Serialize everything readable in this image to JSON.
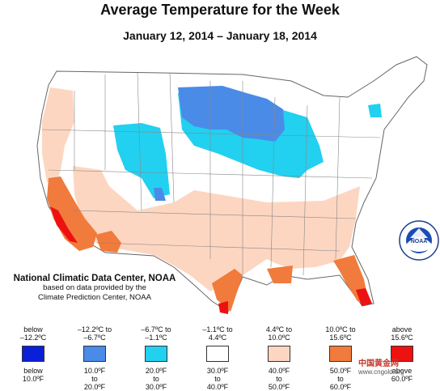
{
  "header": {
    "title": "Average Temperature for the Week",
    "subtitle": "January 12, 2014 – January 18, 2014"
  },
  "credits": {
    "line1": "National Climatic Data Center, NOAA",
    "line2": "based on data provided by the",
    "line3": "Climate Prediction Center, NOAA"
  },
  "logo": {
    "icon": "noaa-logo-icon",
    "text": "NOAA"
  },
  "colors": {
    "below_-12": "#0a1fd8",
    "c_-12_-7": "#4a8be8",
    "c_-7_-1": "#22d0f0",
    "c_-1_4": "#ffffff",
    "c_4_10": "#fdd6c2",
    "c_10_16": "#f07b3c",
    "above_16": "#ee1111",
    "boundary": "#777777"
  },
  "legend": [
    {
      "c": "below\n–12.2ºC",
      "f": "below\n10.0ºF",
      "color": "#0a1fd8"
    },
    {
      "c": "–12.2ºC to\n–6.7ºC",
      "f": "10.0ºF\nto\n20.0ºF",
      "color": "#4a8be8"
    },
    {
      "c": "–6.7ºC to\n–1.1ºC",
      "f": "20.0ºF\nto\n30.0ºF",
      "color": "#22d0f0"
    },
    {
      "c": "–1.1ºC to\n4.4ºC",
      "f": "30.0ºF\nto\n40.0ºF",
      "color": "#ffffff"
    },
    {
      "c": "4.4ºC to\n10.0ºC",
      "f": "40.0ºF\nto\n50.0ºF",
      "color": "#fdd6c2"
    },
    {
      "c": "10.0ºC to\n15.6ºC",
      "f": "50.0ºF\nto\n60.0ºF",
      "color": "#f07b3c"
    },
    {
      "c": "above\n15.6ºC",
      "f": "above\n60.0ºF",
      "color": "#ee1111"
    }
  ],
  "watermark": {
    "text": "中国黄金网",
    "url": "www.cngold.org"
  }
}
